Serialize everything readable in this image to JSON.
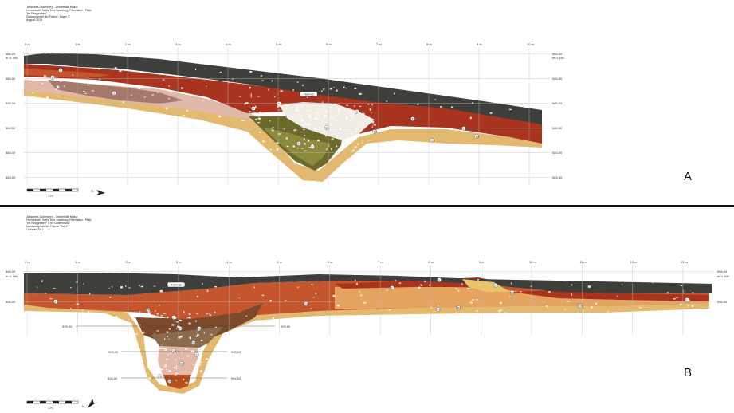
{
  "panels": [
    {
      "id": "A",
      "header_lines": [
        "Johannes Gutenberg - Universität Mainz",
        "Hermeskeil, Kreis Trier-Saarburg, Rheinland - Pfalz",
        "\"Im Ringgraben\"",
        "Südwestprofil der Fläche \"Lager 1\"",
        "August 2010"
      ],
      "letter": "A",
      "x_ticks": [
        "0 m",
        "1 m",
        "2 m",
        "3 m",
        "4 m",
        "5 m",
        "6 m",
        "7 m",
        "8 m",
        "9 m",
        "10 m"
      ],
      "left_labels": [
        "586,00",
        "m ü. NN",
        "585,50",
        "585,00",
        "584,50",
        "584,00",
        "583,50"
      ],
      "right_labels": [
        "586,00",
        "m ü. NN",
        "585,50",
        "585,00",
        "584,50",
        "584,00",
        "583,50"
      ],
      "humus_label": "Humus",
      "layer_numbers": [
        "1",
        "2",
        "3",
        "4",
        "5",
        "6",
        "7",
        "8",
        "9",
        "10",
        "11",
        "12",
        "13",
        "33"
      ],
      "scale_label": "1 m",
      "north_label": "N"
    },
    {
      "id": "B",
      "header_lines": [
        "Johannes Gutenberg - Universität Mainz",
        "Hermeskeil, Kreis Trier-Saarburg, Rheinland - Pfalz",
        "\"Im Ringgraben\" / \"Im Grafenwald\"",
        "Nordwestprofil der Fläche \"Tor 1\"",
        "Oktober 2011"
      ],
      "letter": "B",
      "x_ticks": [
        "0 m",
        "1 m",
        "2 m",
        "3 m",
        "4 m",
        "5 m",
        "6 m",
        "7 m",
        "8 m",
        "9 m",
        "10 m",
        "11 m",
        "12 m",
        "13 m"
      ],
      "left_labels": [
        "596,50",
        "m ü. NN",
        "596,00"
      ],
      "right_labels": [
        "596,50",
        "m ü. NN",
        "596,00"
      ],
      "inner_labels": [
        "595,50",
        "595,50",
        "595,00",
        "595,00",
        "594,50",
        "594,50"
      ],
      "humus_label": "Humus",
      "layer_numbers": [
        "1",
        "3",
        "5",
        "6",
        "8",
        "20",
        "22",
        "24",
        "25",
        "26",
        "27",
        "28",
        "29",
        "30",
        "31",
        "32",
        "37",
        "39",
        "40",
        "41"
      ],
      "scale_label": "1 m",
      "north_label": "N"
    }
  ],
  "colors": {
    "humus": "#3e3f3a",
    "red": "#a8331f",
    "orange": "#c4552c",
    "pink": "#e2b9a8",
    "mauve": "#a57a6c",
    "tan": "#e3b86f",
    "olive": "#6b6a2a",
    "brown": "#7c4a2a",
    "grey": "#8a857c"
  }
}
